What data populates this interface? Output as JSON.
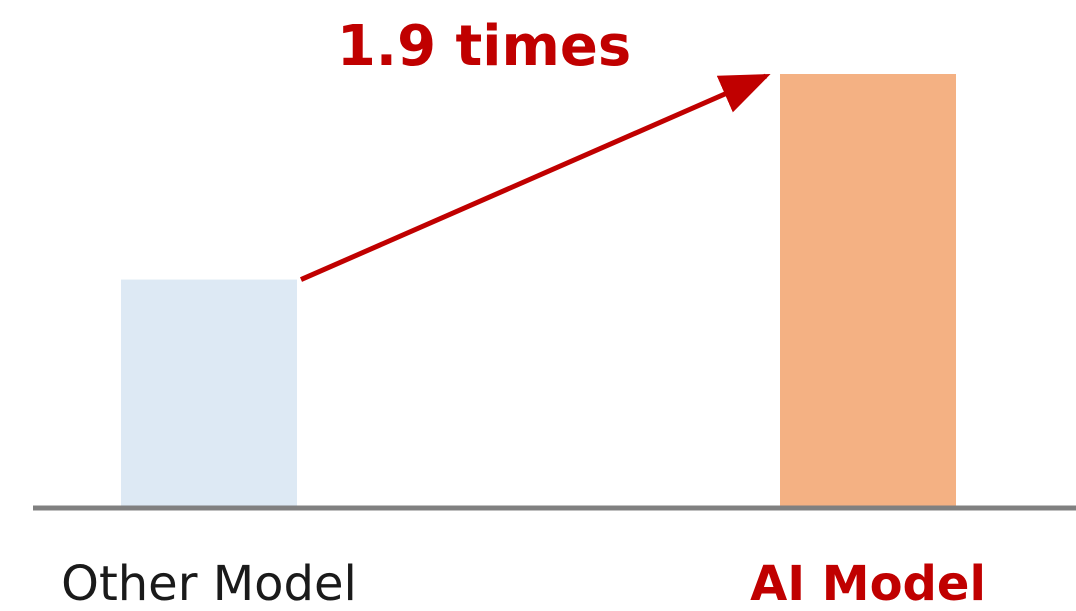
{
  "chart_data": {
    "type": "bar",
    "categories": [
      "Other Model",
      "AI Model"
    ],
    "values": [
      1.0,
      1.9
    ],
    "title": "",
    "xlabel": "",
    "ylabel": "",
    "grid": false,
    "legend": "none",
    "annotation": {
      "text": "1.9 times",
      "from": "Other Model",
      "to": "AI Model"
    },
    "colors": {
      "bars": [
        "#dde9f4",
        "#f4b183"
      ],
      "labels": [
        "#1a1a1a",
        "#c00000"
      ],
      "annotation": "#c00000",
      "axis": "#808080"
    },
    "label_bold": [
      false,
      true
    ]
  }
}
